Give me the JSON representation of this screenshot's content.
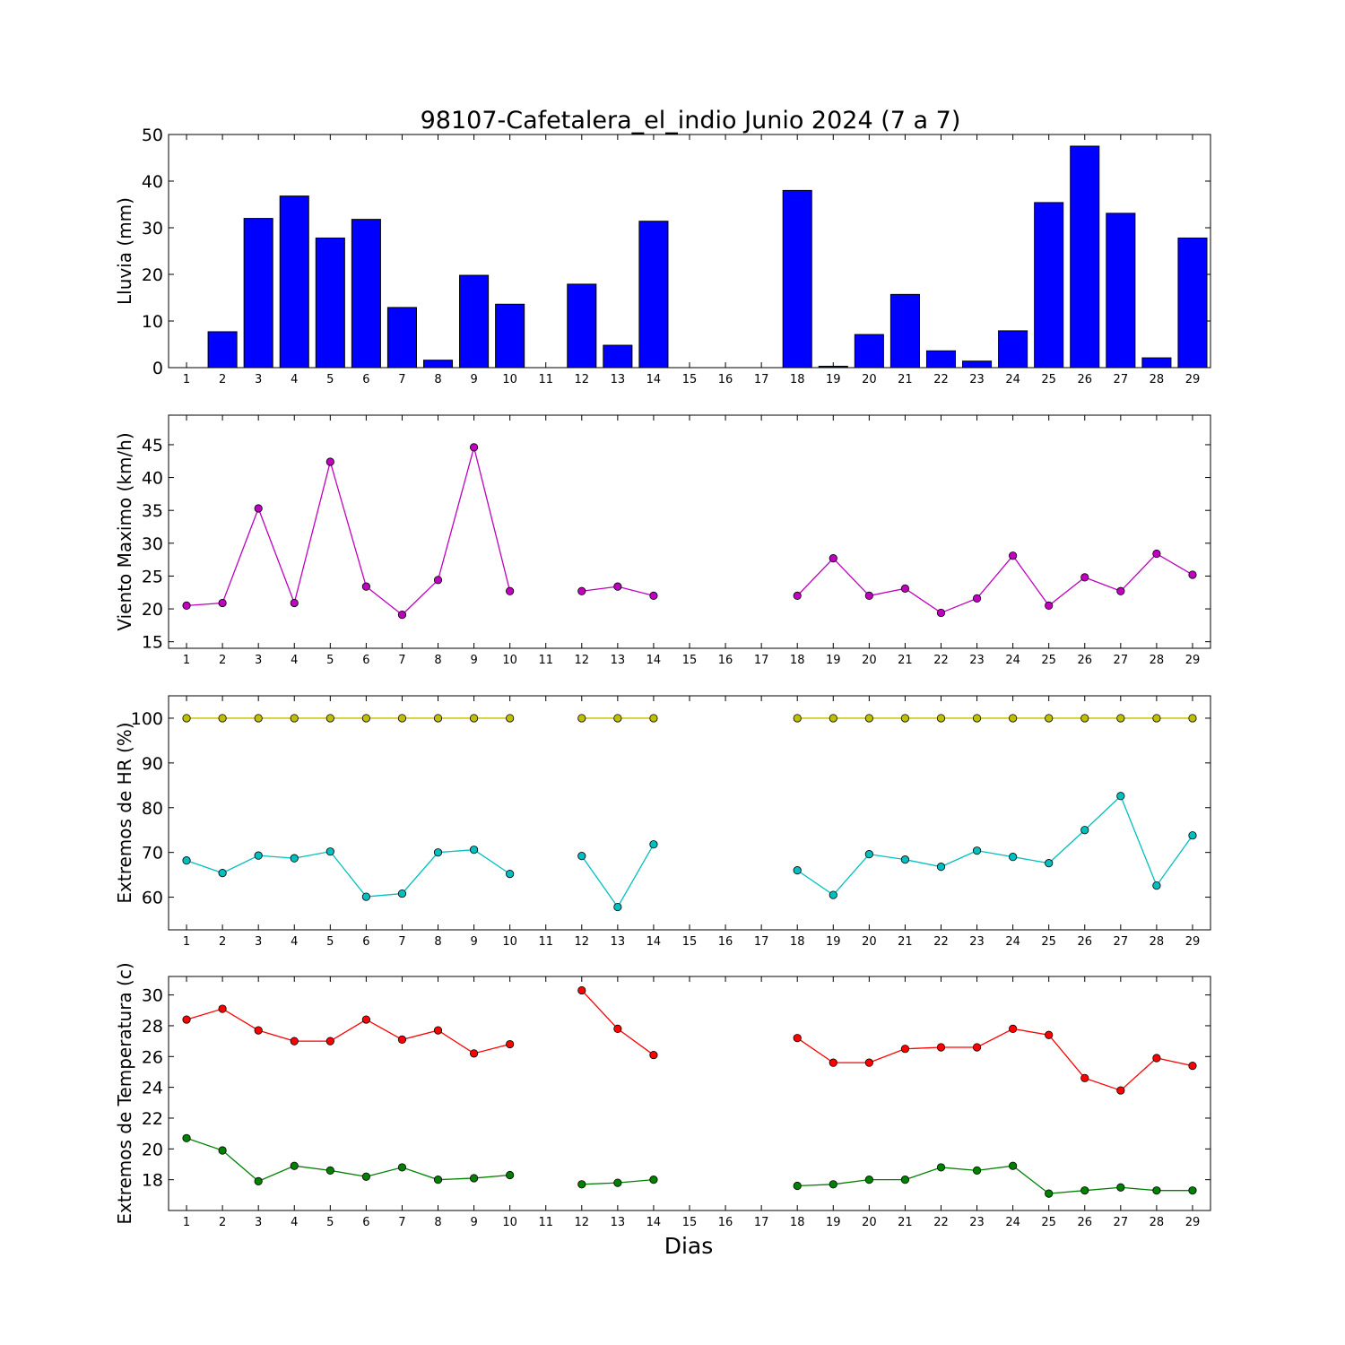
{
  "title": "98107-Cafetalera_el_indio Junio 2024  (7 a 7)",
  "xlabel": "Dias",
  "chart_data": [
    {
      "type": "bar",
      "ylabel": "Lluvia (mm)",
      "ylim": [
        0,
        50
      ],
      "yticks": [
        0,
        10,
        20,
        30,
        40,
        50
      ],
      "x": [
        1,
        2,
        3,
        4,
        5,
        6,
        7,
        8,
        9,
        10,
        11,
        12,
        13,
        14,
        15,
        16,
        17,
        18,
        19,
        20,
        21,
        22,
        23,
        24,
        25,
        26,
        27,
        28,
        29
      ],
      "series": [
        {
          "color": "#0000ff",
          "values": [
            0,
            7.7,
            32,
            36.8,
            27.8,
            31.8,
            12.9,
            1.6,
            19.8,
            13.6,
            0,
            17.9,
            4.8,
            31.4,
            0,
            0,
            0,
            38,
            0.3,
            7.1,
            15.7,
            3.6,
            1.4,
            7.9,
            35.4,
            47.5,
            33.1,
            2.1,
            27.8
          ]
        }
      ]
    },
    {
      "type": "line",
      "ylabel": "Viento Maximo (km/h)",
      "ylim": [
        14,
        49.5
      ],
      "yticks": [
        15,
        20,
        25,
        30,
        35,
        40,
        45
      ],
      "x": [
        1,
        2,
        3,
        4,
        5,
        6,
        7,
        8,
        9,
        10,
        11,
        12,
        13,
        14,
        15,
        16,
        17,
        18,
        19,
        20,
        21,
        22,
        23,
        24,
        25,
        26,
        27,
        28,
        29
      ],
      "series": [
        {
          "color": "#bf00bf",
          "values": [
            20.5,
            20.9,
            35.3,
            20.9,
            42.4,
            23.4,
            19.1,
            24.4,
            44.6,
            22.7,
            null,
            22.7,
            23.4,
            22.0,
            null,
            null,
            null,
            22.0,
            27.7,
            22.0,
            23.1,
            19.4,
            21.6,
            28.1,
            20.5,
            24.8,
            22.7,
            28.4,
            25.2
          ]
        }
      ]
    },
    {
      "type": "line",
      "ylabel": "Extremos de HR (%)",
      "ylim": [
        52.7,
        105
      ],
      "yticks": [
        60,
        70,
        80,
        90,
        100
      ],
      "x": [
        1,
        2,
        3,
        4,
        5,
        6,
        7,
        8,
        9,
        10,
        11,
        12,
        13,
        14,
        15,
        16,
        17,
        18,
        19,
        20,
        21,
        22,
        23,
        24,
        25,
        26,
        27,
        28,
        29
      ],
      "series": [
        {
          "color": "#bfbf00",
          "values": [
            100,
            100,
            100,
            100,
            100,
            100,
            100,
            100,
            100,
            100,
            null,
            100,
            100,
            100,
            null,
            null,
            null,
            100,
            100,
            100,
            100,
            100,
            100,
            100,
            100,
            100,
            100,
            100,
            100
          ]
        },
        {
          "color": "#00bfbf",
          "values": [
            68.2,
            65.4,
            69.3,
            68.7,
            70.2,
            60.1,
            60.8,
            70.0,
            70.6,
            65.2,
            null,
            69.2,
            57.8,
            71.8,
            null,
            null,
            null,
            66.0,
            60.5,
            69.6,
            68.4,
            66.8,
            70.4,
            69.0,
            67.6,
            75.0,
            82.6,
            62.6,
            73.8
          ]
        }
      ]
    },
    {
      "type": "line",
      "ylabel": "Extremos de Temperatura (c)",
      "ylim": [
        16,
        31.2
      ],
      "yticks": [
        18,
        20,
        22,
        24,
        26,
        28,
        30
      ],
      "x": [
        1,
        2,
        3,
        4,
        5,
        6,
        7,
        8,
        9,
        10,
        11,
        12,
        13,
        14,
        15,
        16,
        17,
        18,
        19,
        20,
        21,
        22,
        23,
        24,
        25,
        26,
        27,
        28,
        29
      ],
      "series": [
        {
          "color": "#ff0000",
          "values": [
            28.4,
            29.1,
            27.7,
            27.0,
            27.0,
            28.4,
            27.1,
            27.7,
            26.2,
            26.8,
            null,
            30.3,
            27.8,
            26.1,
            null,
            null,
            null,
            27.2,
            25.6,
            25.6,
            26.5,
            26.6,
            26.6,
            27.8,
            27.4,
            24.6,
            23.8,
            25.9,
            25.4
          ]
        },
        {
          "color": "#008000",
          "values": [
            20.7,
            19.9,
            17.9,
            18.9,
            18.6,
            18.2,
            18.8,
            18.0,
            18.1,
            18.3,
            null,
            17.7,
            17.8,
            18.0,
            null,
            null,
            null,
            17.6,
            17.7,
            18.0,
            18.0,
            18.8,
            18.6,
            18.9,
            17.1,
            17.3,
            17.5,
            17.3,
            17.3
          ]
        }
      ]
    }
  ]
}
